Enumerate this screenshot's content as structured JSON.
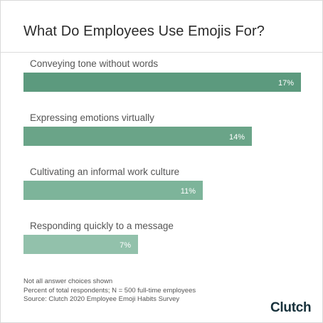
{
  "chart_data": {
    "type": "bar",
    "orientation": "horizontal",
    "title": "What Do Employees Use Emojis For?",
    "categories": [
      "Conveying tone without words",
      "Expressing emotions virtually",
      "Cultivating an informal work culture",
      "Responding quickly to a message"
    ],
    "values": [
      17,
      14,
      11,
      7
    ],
    "value_labels": [
      "17%",
      "14%",
      "11%",
      "7%"
    ],
    "unit": "%",
    "xlim": [
      0,
      17
    ],
    "grid": false,
    "legend": "none",
    "colors": [
      "#5c9a7e",
      "#6aa488",
      "#7db49a",
      "#92c1ab"
    ]
  },
  "notes": [
    "Not all answer choices shown",
    "Percent of total respondents; N = 500 full-time employees",
    "Source: Clutch 2020 Employee Emoji Habits Survey"
  ],
  "brand": {
    "logo_text": "Clutch"
  }
}
